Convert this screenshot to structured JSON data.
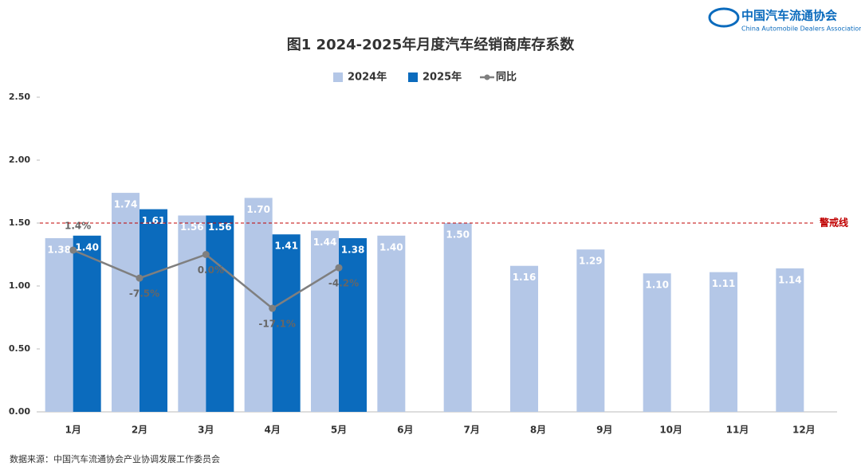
{
  "chart_data": {
    "type": "bar",
    "title": "图1  2024-2025年月度汽车经销商库存系数",
    "source": "数据来源：中国汽车流通协会产业协调发展工作委员会",
    "logo": {
      "name": "中国汽车流通协会",
      "subtitle": "China Automobile Dealers Association"
    },
    "categories": [
      "1月",
      "2月",
      "3月",
      "4月",
      "5月",
      "6月",
      "7月",
      "8月",
      "9月",
      "10月",
      "11月",
      "12月"
    ],
    "series": [
      {
        "name": "2024年",
        "type": "bar",
        "color": "#b4c7e7",
        "values": [
          1.38,
          1.74,
          1.56,
          1.7,
          1.44,
          1.4,
          1.5,
          1.16,
          1.29,
          1.1,
          1.11,
          1.14
        ],
        "value_labels": [
          "1.38",
          "1.74",
          "1.56",
          "1.70",
          "1.44",
          "1.40",
          "1.50",
          "1.16",
          "1.29",
          "1.10",
          "1.11",
          "1.14"
        ]
      },
      {
        "name": "2025年",
        "type": "bar",
        "color": "#0b6bbd",
        "values": [
          1.4,
          1.61,
          1.56,
          1.41,
          1.38,
          null,
          null,
          null,
          null,
          null,
          null,
          null
        ],
        "value_labels": [
          "1.40",
          "1.61",
          "1.56",
          "1.41",
          "1.38",
          null,
          null,
          null,
          null,
          null,
          null,
          null
        ]
      },
      {
        "name": "同比",
        "type": "line",
        "axis": "y2",
        "color": "#7f7f7f",
        "values": [
          1.4,
          -7.5,
          0.0,
          -17.1,
          -4.2,
          null,
          null,
          null,
          null,
          null,
          null,
          null
        ],
        "value_labels": [
          "1.4%",
          "-7.5%",
          "0.0%",
          "-17.1%",
          "-4.2%",
          null,
          null,
          null,
          null,
          null,
          null,
          null
        ]
      }
    ],
    "ylim": [
      0,
      2.5
    ],
    "yticks": [
      {
        "value": 0,
        "label": "0.00"
      },
      {
        "value": 0.5,
        "label": "0.50"
      },
      {
        "value": 1,
        "label": "1.00"
      },
      {
        "value": 1.5,
        "label": "1.50"
      },
      {
        "value": 2,
        "label": "2.00"
      },
      {
        "value": 2.5,
        "label": "2.50"
      }
    ],
    "y2lim": [
      -50,
      50
    ],
    "threshold": {
      "value": 1.5,
      "label": "警戒线",
      "color": "#c00000"
    },
    "legend": "top"
  }
}
